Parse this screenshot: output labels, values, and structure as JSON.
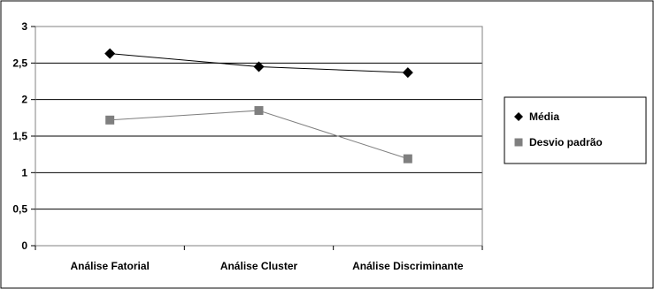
{
  "chart_data": {
    "type": "line",
    "categories": [
      "Análise Fatorial",
      "Análise Cluster",
      "Análise Discriminante"
    ],
    "series": [
      {
        "name": "Média",
        "values": [
          2.63,
          2.45,
          2.37
        ],
        "color": "#000000",
        "marker": "diamond"
      },
      {
        "name": "Desvio padrão",
        "values": [
          1.72,
          1.85,
          1.19
        ],
        "color": "#7f7f7f",
        "marker": "square"
      }
    ],
    "ylim": [
      0,
      3
    ],
    "yticks": [
      {
        "value": 0,
        "label": "0"
      },
      {
        "value": 0.5,
        "label": "0,5"
      },
      {
        "value": 1,
        "label": "1"
      },
      {
        "value": 1.5,
        "label": "1,5"
      },
      {
        "value": 2,
        "label": "2"
      },
      {
        "value": 2.5,
        "label": "2,5"
      },
      {
        "value": 3,
        "label": "3"
      }
    ],
    "grid": true,
    "legend_position": "right",
    "title": "",
    "xlabel": "",
    "ylabel": ""
  }
}
